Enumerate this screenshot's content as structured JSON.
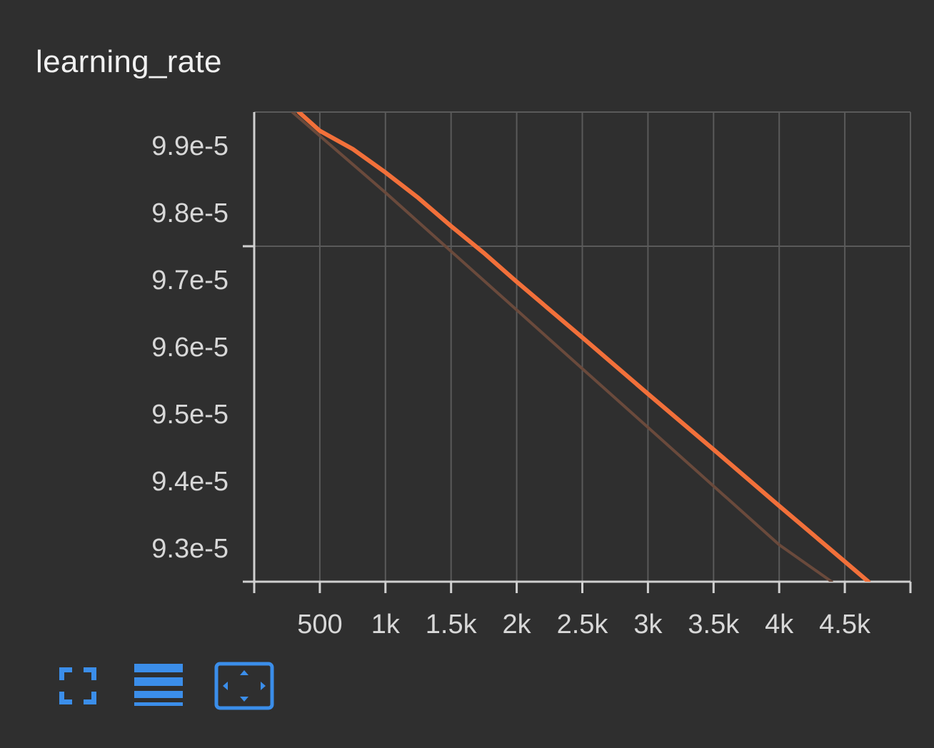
{
  "card": {
    "title": "learning_rate"
  },
  "colors": {
    "background": "#2f2f2f",
    "grid": "#5a5a5a",
    "axis": "#d0d0d0",
    "smoothed_series": "#f2703a",
    "raw_series": "#6a4a3c",
    "toolbar_accent": "#3b8eea"
  },
  "toolbar": {
    "buttons": [
      {
        "icon": "fullscreen-icon"
      },
      {
        "icon": "legend-lines-icon"
      },
      {
        "icon": "fit-domain-icon"
      }
    ]
  },
  "chart_data": {
    "type": "line",
    "title": "learning_rate",
    "xlabel": "",
    "ylabel": "",
    "xlim": [
      0,
      5000
    ],
    "ylim": [
      9.25e-05,
      9.95e-05
    ],
    "x_ticks": [
      500,
      1000,
      1500,
      2000,
      2500,
      3000,
      3500,
      4000,
      4500
    ],
    "x_tick_labels": [
      "500",
      "1k",
      "1.5k",
      "2k",
      "2.5k",
      "3k",
      "3.5k",
      "4k",
      "4.5k"
    ],
    "y_ticks": [
      9.3e-05,
      9.4e-05,
      9.5e-05,
      9.6e-05,
      9.7e-05,
      9.8e-05,
      9.9e-05
    ],
    "y_tick_labels": [
      "9.3e-5",
      "9.4e-5",
      "9.5e-5",
      "9.6e-5",
      "9.7e-5",
      "9.8e-5",
      "9.9e-5"
    ],
    "grid": true,
    "legend": "none",
    "series": [
      {
        "role": "smoothed",
        "x": [
          340,
          500,
          750,
          1000,
          1250,
          1500,
          1750,
          2000,
          2500,
          3000,
          3500,
          4000,
          4500,
          4680
        ],
        "y": [
          9.95e-05,
          9.922e-05,
          9.895e-05,
          9.86e-05,
          9.822e-05,
          9.78e-05,
          9.74e-05,
          9.697e-05,
          9.614e-05,
          9.53e-05,
          9.447e-05,
          9.363e-05,
          9.28e-05,
          9.25e-05
        ]
      },
      {
        "role": "raw",
        "x": [
          290,
          1000,
          2000,
          3000,
          4000,
          4400
        ],
        "y": [
          9.95e-05,
          9.83e-05,
          9.655e-05,
          9.48e-05,
          9.305e-05,
          9.25e-05
        ]
      }
    ]
  }
}
